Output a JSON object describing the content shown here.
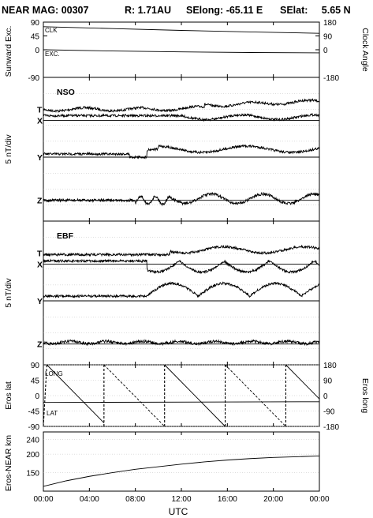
{
  "title": {
    "mission": "NEAR MAG: 00307",
    "r": "R: 1.71AU",
    "selong": "SElong:  -65.11 E",
    "selat": "SElat:     5.65 N"
  },
  "chart_data": [
    {
      "id": "sunward",
      "type": "line",
      "ylabel_left": "Sunward Exc.",
      "ylabel_right": "Clock Angle",
      "left_ticks": [
        "90",
        "45",
        "0",
        "-90"
      ],
      "right_ticks": [
        "180",
        "90",
        "0",
        "-180"
      ],
      "left_range": [
        -90,
        90
      ],
      "right_range": [
        -180,
        180
      ],
      "series": [
        {
          "name": "CLK",
          "axis": "right",
          "x_hours": [
            0,
            6,
            12,
            18,
            24
          ],
          "values": [
            150,
            138,
            126,
            116,
            107
          ]
        },
        {
          "name": "EXC.",
          "axis": "left",
          "x_hours": [
            0,
            6,
            12,
            18,
            24
          ],
          "values": [
            0,
            -4,
            -7,
            -9,
            -10
          ]
        }
      ]
    },
    {
      "id": "nso",
      "type": "line",
      "panel_label": "NSO",
      "ylabel_left": "5 nT/div",
      "series_labels": [
        "T",
        "X",
        "Y",
        "Z"
      ],
      "baselines": [
        1.5,
        1.5,
        4.5,
        7.5
      ]
    },
    {
      "id": "ebf",
      "type": "line",
      "panel_label": "EBF",
      "ylabel_left": "5 nT/div",
      "series_labels": [
        "T",
        "X",
        "Y",
        "Z"
      ],
      "baselines": [
        1.5,
        1.5,
        4.5,
        7.5
      ]
    },
    {
      "id": "eros",
      "type": "line",
      "ylabel_left": "Eros lat",
      "ylabel_right": "Eros long",
      "left_ticks": [
        "90",
        "45",
        "0",
        "-45",
        "-90"
      ],
      "right_ticks": [
        "180",
        "90",
        "0",
        "-90",
        "-180"
      ],
      "left_range": [
        -90,
        90
      ],
      "right_range": [
        -180,
        180
      ],
      "series": [
        {
          "name": "LONG",
          "axis": "right",
          "rotation_hours": 5.27,
          "x_hours": [
            0,
            0.3,
            5.27,
            5.27,
            10.54,
            10.54,
            15.81,
            15.81,
            21.08,
            21.08,
            24
          ],
          "values": [
            -180,
            180,
            -180,
            180,
            -180,
            180,
            -180,
            180,
            -180,
            180,
            -20
          ]
        },
        {
          "name": "LAT",
          "axis": "left",
          "x_hours": [
            0,
            24
          ],
          "values": [
            -20,
            -18
          ]
        }
      ]
    },
    {
      "id": "range",
      "type": "line",
      "ylabel_left": "Eros-NEAR km",
      "left_ticks": [
        "240",
        "200",
        "150"
      ],
      "left_range": [
        100,
        260
      ],
      "series": [
        {
          "name": "Eros-NEAR km",
          "x_hours": [
            0,
            2,
            4,
            6,
            8,
            10,
            12,
            14,
            16,
            18,
            20,
            22,
            24
          ],
          "values": [
            113,
            128,
            140,
            150,
            159,
            166,
            173,
            179,
            184,
            188,
            191,
            193,
            195
          ]
        }
      ]
    }
  ],
  "x_axis": {
    "label": "UTC",
    "range_hours": [
      0,
      24
    ],
    "ticks": [
      "00:00",
      "04:00",
      "08:00",
      "12:00",
      "16:00",
      "20:00",
      "00:00"
    ]
  }
}
